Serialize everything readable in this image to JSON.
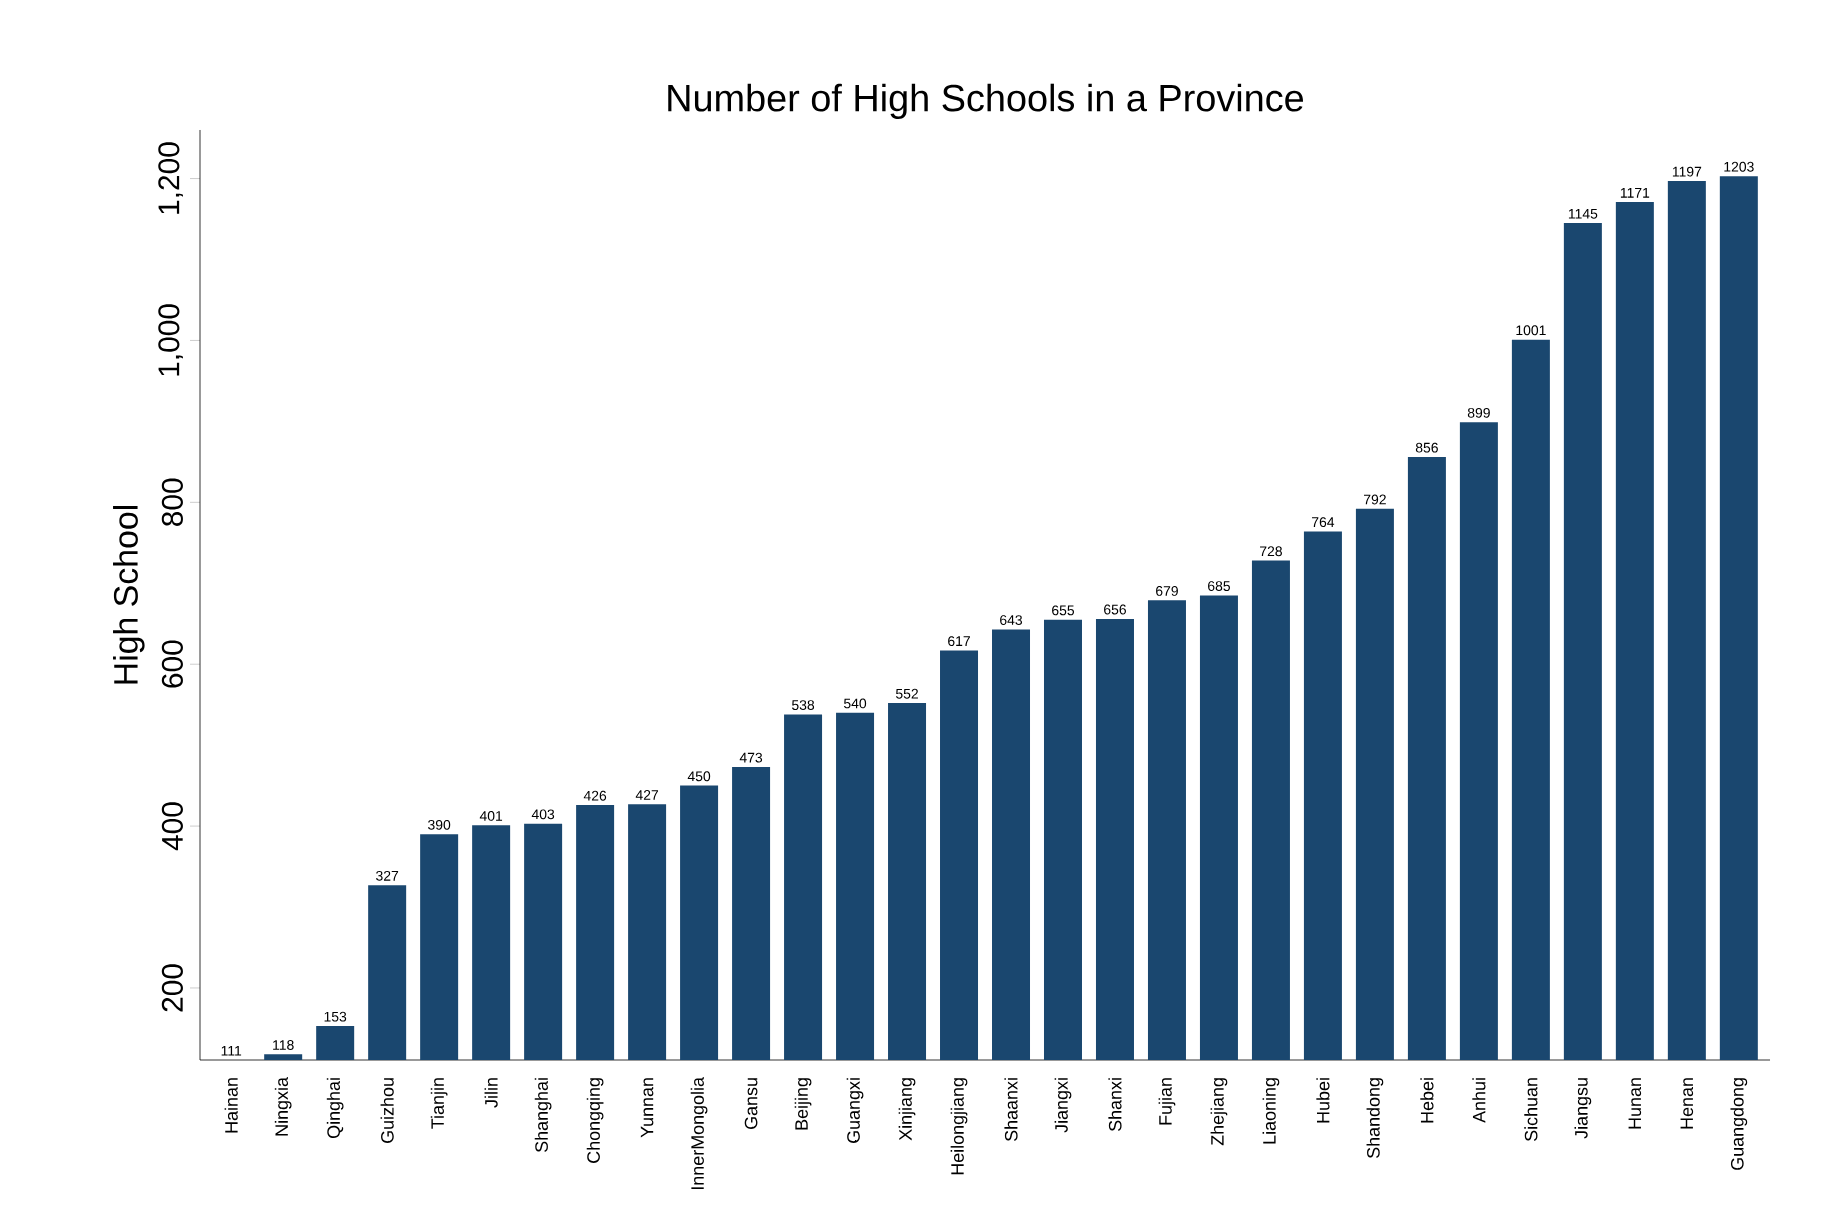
{
  "chart_data": {
    "type": "bar",
    "title": "Number of High Schools in a Province",
    "ylabel": "High School",
    "categories": [
      "Hainan",
      "Ningxia",
      "Qinghai",
      "Guizhou",
      "Tianjin",
      "Jilin",
      "Shanghai",
      "Chongqing",
      "Yunnan",
      "InnerMongolia",
      "Gansu",
      "Beijing",
      "Guangxi",
      "Xinjiang",
      "Heilongjiang",
      "Shaanxi",
      "Jiangxi",
      "Shanxi",
      "Fujian",
      "Zhejiang",
      "Liaoning",
      "Hubei",
      "Shandong",
      "Hebei",
      "Anhui",
      "Sichuan",
      "Jiangsu",
      "Hunan",
      "Henan",
      "Guangdong"
    ],
    "values": [
      111,
      118,
      153,
      327,
      390,
      401,
      403,
      426,
      427,
      450,
      473,
      538,
      540,
      552,
      617,
      643,
      655,
      656,
      679,
      685,
      728,
      764,
      792,
      856,
      899,
      1001,
      1145,
      1171,
      1197,
      1203
    ],
    "color": "#1a476f",
    "ylim": [
      111,
      1260
    ],
    "yticks": [
      200,
      400,
      600,
      800,
      {
        "value": 1000,
        "label": "1,000"
      },
      {
        "value": 1200,
        "label": "1,200"
      }
    ],
    "data_labels": true
  }
}
